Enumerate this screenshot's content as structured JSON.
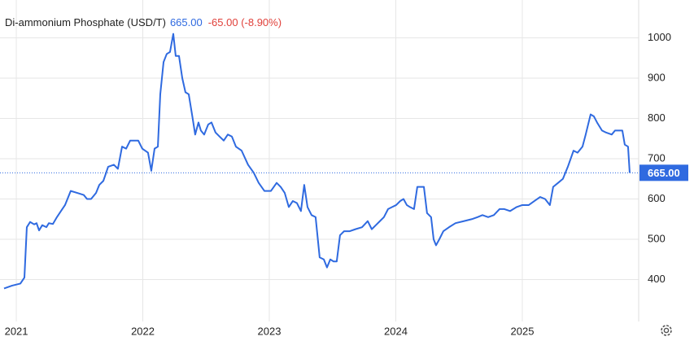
{
  "chart_data": {
    "type": "line",
    "title": "Di-ammonium Phosphate (USD/T)",
    "price": "665.00",
    "change": "-65.00 (-8.90%)",
    "x": [
      2020.903,
      2020.967,
      2021.032,
      2021.064,
      2021.083,
      2021.109,
      2021.141,
      2021.16,
      2021.18,
      2021.205,
      2021.238,
      2021.257,
      2021.289,
      2021.321,
      2021.353,
      2021.385,
      2021.43,
      2021.482,
      2021.533,
      2021.559,
      2021.591,
      2021.63,
      2021.656,
      2021.688,
      2021.726,
      2021.771,
      2021.803,
      2021.836,
      2021.868,
      2021.9,
      2021.964,
      2021.996,
      2022.041,
      2022.067,
      2022.093,
      2022.119,
      2022.138,
      2022.164,
      2022.189,
      2022.215,
      2022.241,
      2022.26,
      2022.286,
      2022.312,
      2022.337,
      2022.363,
      2022.389,
      2022.414,
      2022.44,
      2022.459,
      2022.485,
      2022.517,
      2022.543,
      2022.575,
      2022.607,
      2022.64,
      2022.672,
      2022.704,
      2022.736,
      2022.781,
      2022.832,
      2022.877,
      2022.916,
      2022.961,
      2023.013,
      2023.058,
      2023.09,
      2023.122,
      2023.154,
      2023.186,
      2023.218,
      2023.25,
      2023.276,
      2023.302,
      2023.334,
      2023.366,
      2023.398,
      2023.431,
      2023.456,
      2023.482,
      2023.508,
      2023.533,
      2023.559,
      2023.591,
      2023.636,
      2023.681,
      2023.733,
      2023.778,
      2023.81,
      2023.842,
      2023.874,
      2023.906,
      2023.939,
      2023.971,
      2024.003,
      2024.035,
      2024.061,
      2024.087,
      2024.112,
      2024.144,
      2024.17,
      2024.196,
      2024.222,
      2024.247,
      2024.279,
      2024.299,
      2024.318,
      2024.344,
      2024.376,
      2024.421,
      2024.472,
      2024.537,
      2024.601,
      2024.646,
      2024.685,
      2024.73,
      2024.775,
      2024.82,
      2024.858,
      2024.903,
      2024.955,
      2025.0,
      2025.051,
      2025.096,
      2025.141,
      2025.18,
      2025.218,
      2025.244,
      2025.283,
      2025.321,
      2025.36,
      2025.405,
      2025.437,
      2025.476,
      2025.501,
      2025.54,
      2025.566,
      2025.591,
      2025.63,
      2025.662,
      2025.707,
      2025.733,
      2025.759,
      2025.791,
      2025.81,
      2025.836,
      2025.849
    ],
    "series": [
      {
        "name": "Di-ammonium Phosphate",
        "color": "#2f6ae0",
        "values": [
          378,
          385,
          390,
          405,
          530,
          543,
          537,
          540,
          522,
          535,
          530,
          540,
          538,
          555,
          570,
          585,
          620,
          615,
          610,
          600,
          600,
          615,
          635,
          645,
          680,
          685,
          675,
          730,
          725,
          745,
          745,
          725,
          715,
          670,
          725,
          730,
          860,
          940,
          960,
          965,
          1010,
          955,
          955,
          900,
          865,
          860,
          810,
          760,
          790,
          770,
          760,
          785,
          790,
          765,
          755,
          745,
          760,
          755,
          730,
          720,
          685,
          665,
          640,
          620,
          620,
          640,
          630,
          615,
          580,
          595,
          590,
          570,
          635,
          580,
          560,
          555,
          455,
          450,
          430,
          450,
          445,
          445,
          510,
          520,
          520,
          525,
          530,
          545,
          525,
          535,
          545,
          555,
          575,
          580,
          585,
          595,
          600,
          585,
          580,
          575,
          630,
          630,
          630,
          565,
          555,
          500,
          485,
          500,
          520,
          530,
          540,
          545,
          550,
          555,
          560,
          555,
          560,
          575,
          575,
          570,
          580,
          585,
          585,
          595,
          605,
          600,
          585,
          630,
          640,
          650,
          680,
          720,
          715,
          730,
          760,
          810,
          805,
          790,
          770,
          765,
          760,
          770,
          770,
          770,
          735,
          730,
          665
        ]
      }
    ],
    "xlim": [
      2020.871,
      2025.92
    ],
    "xticks": [
      2021,
      2022,
      2023,
      2024,
      2025
    ],
    "ylim": [
      300,
      1094
    ],
    "yticks": [
      400,
      500,
      600,
      700,
      800,
      900,
      1000
    ],
    "grid": true
  }
}
